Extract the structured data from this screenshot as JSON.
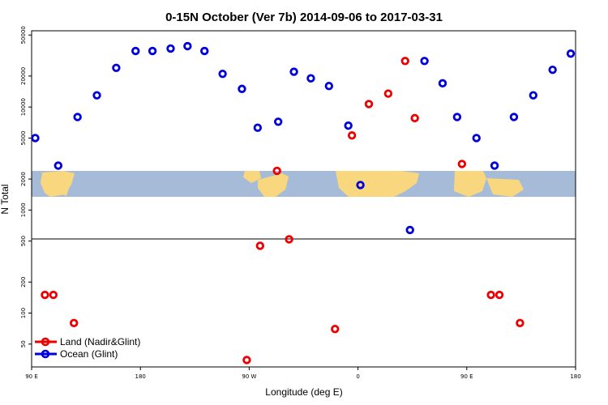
{
  "chart_data": {
    "type": "scatter",
    "title": "0-15N October (Ver 7b)   2014-09-06 to 2017-03-31",
    "xlabel": "Longitude (deg E)",
    "ylabel": "N Total",
    "x_ticks": [
      "90 E",
      "180",
      "90 W",
      "0",
      "90 E",
      "180"
    ],
    "y_ticks": [
      "50",
      "100",
      "200",
      "500",
      "1000",
      "2000",
      "5000",
      "10000",
      "20000",
      "50000"
    ],
    "y_scale": "log",
    "ylim": [
      30,
      55000
    ],
    "xlim": [
      90,
      540
    ],
    "grid": false,
    "reference_line_y": 500,
    "background_map_band": true,
    "legend_position": "bottom-left",
    "series": [
      {
        "name": "Land (Nadir&Glint)",
        "color": "#ee0000",
        "points": [
          {
            "x": 101,
            "y": 150
          },
          {
            "x": 108,
            "y": 150
          },
          {
            "x": 125,
            "y": 80
          },
          {
            "x": 268,
            "y": 35
          },
          {
            "x": 279,
            "y": 450
          },
          {
            "x": 293,
            "y": 2400
          },
          {
            "x": 303,
            "y": 520
          },
          {
            "x": 341,
            "y": 70
          },
          {
            "x": 355,
            "y": 5300
          },
          {
            "x": 369,
            "y": 10700
          },
          {
            "x": 385,
            "y": 13500
          },
          {
            "x": 399,
            "y": 28000
          },
          {
            "x": 407,
            "y": 7800
          },
          {
            "x": 446,
            "y": 2800
          },
          {
            "x": 470,
            "y": 150
          },
          {
            "x": 477,
            "y": 150
          },
          {
            "x": 494,
            "y": 80
          }
        ]
      },
      {
        "name": "Ocean (Glint)",
        "color": "#0000dd",
        "points": [
          {
            "x": 93,
            "y": 5000
          },
          {
            "x": 112,
            "y": 2700
          },
          {
            "x": 128,
            "y": 8000
          },
          {
            "x": 144,
            "y": 13000
          },
          {
            "x": 160,
            "y": 24000
          },
          {
            "x": 176,
            "y": 35000
          },
          {
            "x": 190,
            "y": 35000
          },
          {
            "x": 205,
            "y": 37000
          },
          {
            "x": 219,
            "y": 39000
          },
          {
            "x": 233,
            "y": 35000
          },
          {
            "x": 248,
            "y": 21000
          },
          {
            "x": 264,
            "y": 15000
          },
          {
            "x": 277,
            "y": 6300
          },
          {
            "x": 294,
            "y": 7200
          },
          {
            "x": 307,
            "y": 22000
          },
          {
            "x": 321,
            "y": 19000
          },
          {
            "x": 336,
            "y": 16000
          },
          {
            "x": 352,
            "y": 6600
          },
          {
            "x": 362,
            "y": 1750
          },
          {
            "x": 403,
            "y": 640
          },
          {
            "x": 415,
            "y": 28000
          },
          {
            "x": 430,
            "y": 17000
          },
          {
            "x": 442,
            "y": 8000
          },
          {
            "x": 458,
            "y": 5000
          },
          {
            "x": 473,
            "y": 2700
          },
          {
            "x": 489,
            "y": 8000
          },
          {
            "x": 505,
            "y": 13000
          },
          {
            "x": 521,
            "y": 23000
          },
          {
            "x": 536,
            "y": 33000
          }
        ]
      }
    ]
  }
}
